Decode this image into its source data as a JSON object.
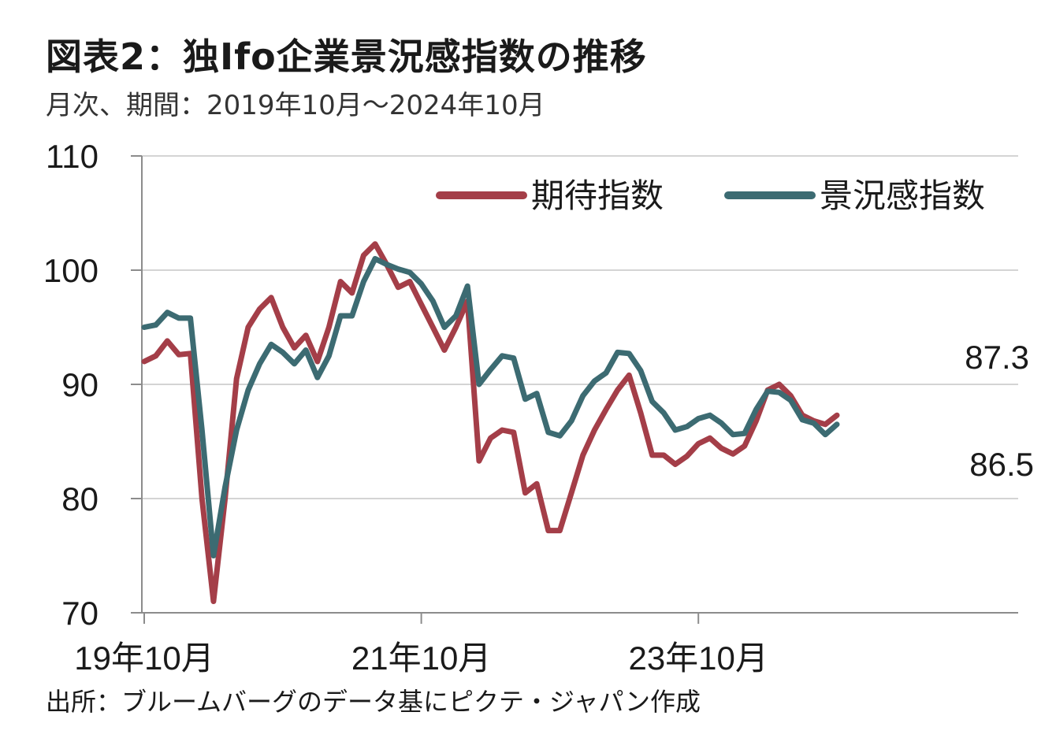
{
  "title": "図表2：独Ifo企業景況感指数の推移",
  "subtitle": "月次、期間：2019年10月～2024年10月",
  "source": "出所：ブルームバーグのデータ基にピクテ・ジャパン作成",
  "chart_data": {
    "type": "line",
    "title": "図表2：独Ifo企業景況感指数の推移",
    "subtitle": "月次、期間：2019年10月～2024年10月",
    "xlabel": "",
    "ylabel": "",
    "ylim": [
      70,
      110
    ],
    "yticks": [
      70,
      80,
      90,
      100,
      110
    ],
    "x_tick_labels": [
      {
        "label": "19年10月",
        "index": 0
      },
      {
        "label": "21年10月",
        "index": 24
      },
      {
        "label": "23年10月",
        "index": 48
      }
    ],
    "grid": true,
    "legend": "top-right",
    "n_points": 61,
    "series": [
      {
        "name": "期待指数",
        "color": "#A43E48",
        "values": [
          92.0,
          92.5,
          93.8,
          92.6,
          92.7,
          80.0,
          71.0,
          80.0,
          90.5,
          95.0,
          96.6,
          97.6,
          95.0,
          93.2,
          94.3,
          92.0,
          95.0,
          99.0,
          98.0,
          101.3,
          102.3,
          100.5,
          98.5,
          99.0,
          97.0,
          95.0,
          93.0,
          95.0,
          97.3,
          83.3,
          85.3,
          86.0,
          85.8,
          80.5,
          81.3,
          77.2,
          77.2,
          80.5,
          83.8,
          86.0,
          87.8,
          89.5,
          90.8,
          87.5,
          83.8,
          83.8,
          83.0,
          83.7,
          84.8,
          85.3,
          84.4,
          83.9,
          84.6,
          86.8,
          89.5,
          90.0,
          89.0,
          87.3,
          86.8,
          86.5,
          87.3
        ]
      },
      {
        "name": "景況感指数",
        "color": "#3C6B72",
        "values": [
          95.0,
          95.2,
          96.3,
          95.8,
          95.8,
          86.0,
          75.0,
          81.0,
          86.0,
          89.5,
          91.8,
          93.5,
          92.8,
          91.8,
          93.0,
          90.6,
          92.5,
          96.0,
          96.0,
          99.0,
          101.0,
          100.5,
          100.1,
          99.8,
          98.8,
          97.3,
          95.0,
          96.0,
          98.6,
          90.0,
          91.3,
          92.5,
          92.3,
          88.7,
          89.2,
          85.8,
          85.5,
          86.8,
          89.0,
          90.3,
          91.0,
          92.8,
          92.7,
          91.2,
          88.5,
          87.5,
          86.0,
          86.3,
          87.0,
          87.3,
          86.6,
          85.6,
          85.7,
          87.8,
          89.4,
          89.3,
          88.6,
          86.9,
          86.6,
          85.6,
          86.5
        ]
      }
    ],
    "end_labels": [
      {
        "series": "期待指数",
        "text": "87.3"
      },
      {
        "series": "景況感指数",
        "text": "86.5"
      }
    ]
  }
}
